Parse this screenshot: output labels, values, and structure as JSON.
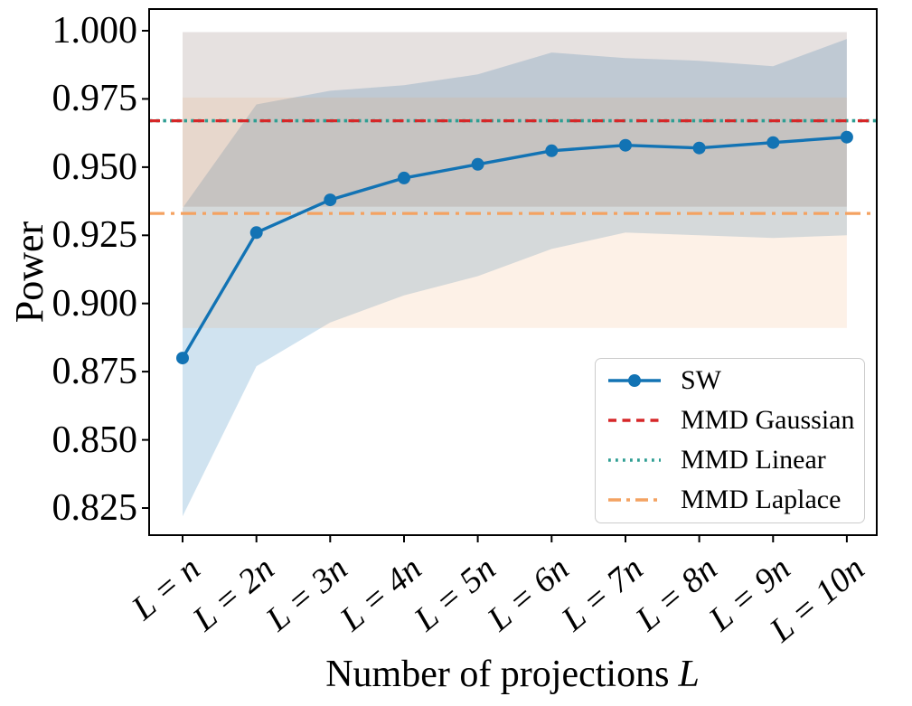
{
  "chart_data": {
    "type": "line",
    "title": "",
    "xlabel_text": "Number of projections",
    "xlabel_var": "L",
    "ylabel": "Power",
    "x_categories": [
      "L = n",
      "L = 2n",
      "L = 3n",
      "L = 4n",
      "L = 5n",
      "L = 6n",
      "L = 7n",
      "L = 8n",
      "L = 9n",
      "L = 10n"
    ],
    "ytick_labels": [
      "1.000",
      "0.975",
      "0.950",
      "0.925",
      "0.900",
      "0.875",
      "0.850",
      "0.825"
    ],
    "ylim": [
      0.815,
      1.008
    ],
    "grid": false,
    "legend_position": "lower right",
    "series": [
      {
        "name": "SW",
        "color": "#1273b4",
        "style": "solid-marker",
        "marker": "circle",
        "values": [
          0.88,
          0.926,
          0.938,
          0.946,
          0.951,
          0.956,
          0.958,
          0.957,
          0.959,
          0.961
        ],
        "band_low": [
          0.822,
          0.877,
          0.893,
          0.903,
          0.91,
          0.92,
          0.926,
          0.925,
          0.924,
          0.925
        ],
        "band_high": [
          0.935,
          0.973,
          0.978,
          0.98,
          0.984,
          0.992,
          0.99,
          0.989,
          0.987,
          0.997
        ],
        "band_opacity": 0.2
      },
      {
        "name": "MMD Gaussian",
        "color": "#d62728",
        "style": "dashed",
        "value": 0.967,
        "band_low": 0.9355,
        "band_high": 0.9995,
        "band_opacity": 0.1
      },
      {
        "name": "MMD Linear",
        "color": "#2f9e93",
        "style": "dotted",
        "value": 0.967,
        "band_low": 0.9355,
        "band_high": 0.9995,
        "band_opacity": 0.1
      },
      {
        "name": "MMD Laplace",
        "color": "#f4a261",
        "style": "dashdot",
        "value": 0.933,
        "band_low": 0.891,
        "band_high": 0.9755,
        "band_opacity": 0.15
      }
    ]
  }
}
